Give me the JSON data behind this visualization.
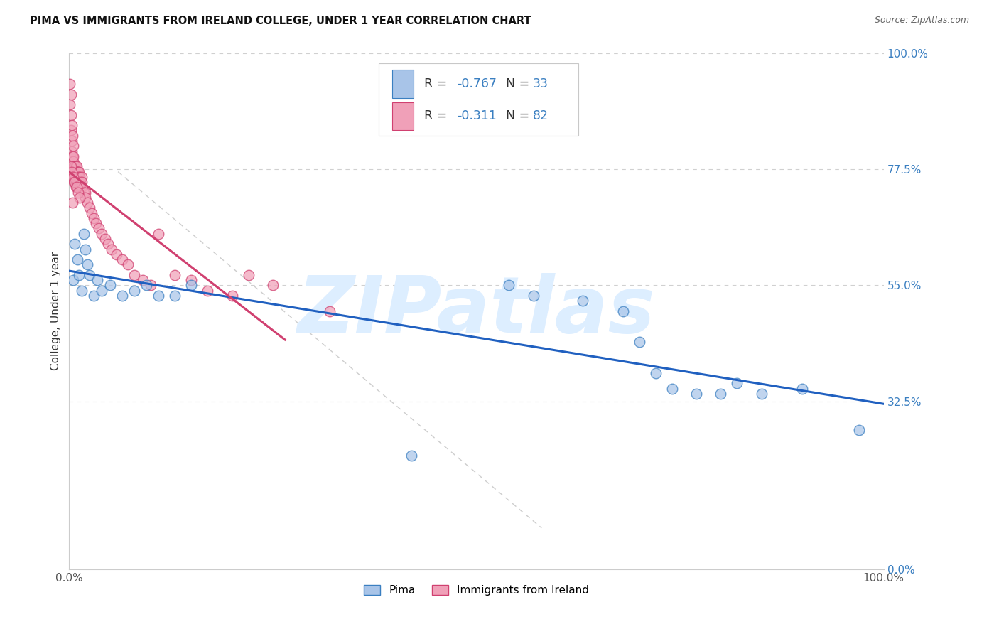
{
  "title": "PIMA VS IMMIGRANTS FROM IRELAND COLLEGE, UNDER 1 YEAR CORRELATION CHART",
  "source": "Source: ZipAtlas.com",
  "ylabel": "College, Under 1 year",
  "xlim": [
    0.0,
    1.0
  ],
  "ylim": [
    0.0,
    1.0
  ],
  "xtick_positions": [
    0.0,
    1.0
  ],
  "xtick_labels": [
    "0.0%",
    "100.0%"
  ],
  "ytick_positions": [
    0.0,
    0.325,
    0.55,
    0.775,
    1.0
  ],
  "ytick_labels": [
    "0.0%",
    "32.5%",
    "55.0%",
    "77.5%",
    "100.0%"
  ],
  "grid_color": "#d0d0d0",
  "bg_color": "#ffffff",
  "watermark_text": "ZIPatlas",
  "pima_fill": "#a8c4e8",
  "pima_edge": "#3a7fc1",
  "ireland_fill": "#f0a0b8",
  "ireland_edge": "#d04070",
  "pima_line_color": "#2060c0",
  "ireland_line_color": "#d04070",
  "diag_color": "#c8c8c8",
  "title_color": "#111111",
  "source_color": "#666666",
  "ytick_color": "#3a7fc1",
  "xtick_color": "#555555",
  "legend_r_n_color": "#3a7fc1",
  "legend_border_color": "#c8c8c8",
  "legend_pima_label": "Pima",
  "legend_ireland_label": "Immigrants from Ireland",
  "pima_R_str": "-0.767",
  "pima_N_str": "33",
  "ireland_R_str": "-0.311",
  "ireland_N_str": "82",
  "marker_size": 110,
  "line_width": 2.2
}
